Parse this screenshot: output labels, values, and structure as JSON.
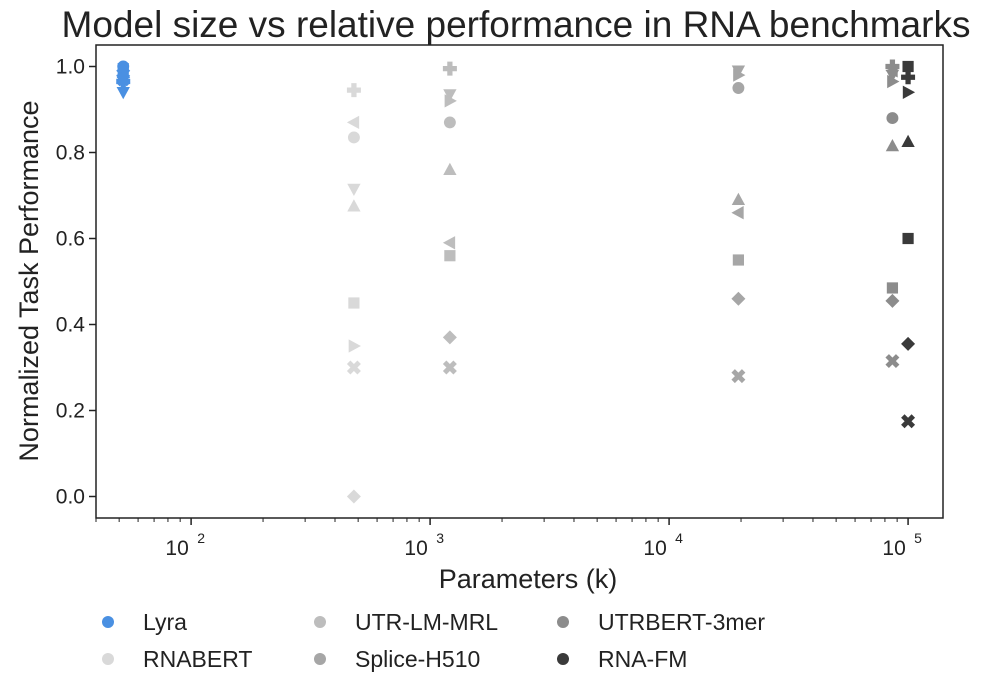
{
  "chart_data": {
    "type": "scatter",
    "title": "Model size vs relative performance in RNA benchmarks",
    "xlabel": "Parameters (k)",
    "ylabel": "Normalized Task Performance",
    "xscale": "log",
    "xlim": [
      40,
      140000
    ],
    "ylim": [
      -0.05,
      1.05
    ],
    "grid": false,
    "legend_position": "bottom",
    "y_ticks": [
      {
        "value": 0.0,
        "label": "0.0"
      },
      {
        "value": 0.2,
        "label": "0.2"
      },
      {
        "value": 0.4,
        "label": "0.4"
      },
      {
        "value": 0.6,
        "label": "0.6"
      },
      {
        "value": 0.8,
        "label": "0.8"
      },
      {
        "value": 1.0,
        "label": "1.0"
      }
    ],
    "x_ticks": [
      {
        "value": 100,
        "base": "10",
        "exp": "2"
      },
      {
        "value": 1000,
        "base": "10",
        "exp": "3"
      },
      {
        "value": 10000,
        "base": "10",
        "exp": "4"
      },
      {
        "value": 100000,
        "base": "10",
        "exp": "5"
      }
    ],
    "series": [
      {
        "name": "Lyra",
        "color": "#4A90E2",
        "points": [
          {
            "x": 52,
            "y": 1.0,
            "marker": "circle"
          },
          {
            "x": 52,
            "y": 0.995,
            "marker": "square"
          },
          {
            "x": 52,
            "y": 0.99,
            "marker": "diamond"
          },
          {
            "x": 52,
            "y": 0.985,
            "marker": "triangle-up"
          },
          {
            "x": 52,
            "y": 0.98,
            "marker": "triangle-left"
          },
          {
            "x": 52,
            "y": 0.975,
            "marker": "triangle-right"
          },
          {
            "x": 52,
            "y": 0.97,
            "marker": "x"
          },
          {
            "x": 52,
            "y": 0.965,
            "marker": "plus"
          },
          {
            "x": 52,
            "y": 0.94,
            "marker": "triangle-down"
          }
        ]
      },
      {
        "name": "RNABERT",
        "color": "#D9D9D9",
        "points": [
          {
            "x": 480,
            "y": 0.945,
            "marker": "plus"
          },
          {
            "x": 480,
            "y": 0.87,
            "marker": "triangle-left"
          },
          {
            "x": 480,
            "y": 0.835,
            "marker": "circle"
          },
          {
            "x": 480,
            "y": 0.715,
            "marker": "triangle-down"
          },
          {
            "x": 480,
            "y": 0.675,
            "marker": "triangle-up"
          },
          {
            "x": 480,
            "y": 0.45,
            "marker": "square"
          },
          {
            "x": 480,
            "y": 0.35,
            "marker": "triangle-right"
          },
          {
            "x": 480,
            "y": 0.3,
            "marker": "x"
          },
          {
            "x": 480,
            "y": 0.0,
            "marker": "diamond"
          }
        ]
      },
      {
        "name": "UTR-LM-MRL",
        "color": "#BDBDBD",
        "points": [
          {
            "x": 1210,
            "y": 0.995,
            "marker": "plus"
          },
          {
            "x": 1210,
            "y": 0.935,
            "marker": "triangle-down"
          },
          {
            "x": 1210,
            "y": 0.92,
            "marker": "triangle-right"
          },
          {
            "x": 1210,
            "y": 0.87,
            "marker": "circle"
          },
          {
            "x": 1210,
            "y": 0.76,
            "marker": "triangle-up"
          },
          {
            "x": 1210,
            "y": 0.59,
            "marker": "triangle-left"
          },
          {
            "x": 1210,
            "y": 0.56,
            "marker": "square"
          },
          {
            "x": 1210,
            "y": 0.37,
            "marker": "diamond"
          },
          {
            "x": 1210,
            "y": 0.3,
            "marker": "x"
          }
        ]
      },
      {
        "name": "Splice-H510",
        "color": "#A6A6A6",
        "points": [
          {
            "x": 19500,
            "y": 0.99,
            "marker": "triangle-down"
          },
          {
            "x": 19500,
            "y": 0.98,
            "marker": "triangle-right"
          },
          {
            "x": 19500,
            "y": 0.95,
            "marker": "circle"
          },
          {
            "x": 19500,
            "y": 0.69,
            "marker": "triangle-up"
          },
          {
            "x": 19500,
            "y": 0.66,
            "marker": "triangle-left"
          },
          {
            "x": 19500,
            "y": 0.55,
            "marker": "square"
          },
          {
            "x": 19500,
            "y": 0.46,
            "marker": "diamond"
          },
          {
            "x": 19500,
            "y": 0.28,
            "marker": "x"
          }
        ]
      },
      {
        "name": "UTRBERT-3mer",
        "color": "#8C8C8C",
        "points": [
          {
            "x": 86000,
            "y": 1.0,
            "marker": "plus"
          },
          {
            "x": 86000,
            "y": 0.99,
            "marker": "triangle-left"
          },
          {
            "x": 86000,
            "y": 0.98,
            "marker": "triangle-down"
          },
          {
            "x": 86000,
            "y": 0.965,
            "marker": "triangle-right"
          },
          {
            "x": 86000,
            "y": 0.88,
            "marker": "circle"
          },
          {
            "x": 86000,
            "y": 0.815,
            "marker": "triangle-up"
          },
          {
            "x": 86000,
            "y": 0.485,
            "marker": "square"
          },
          {
            "x": 86000,
            "y": 0.455,
            "marker": "diamond"
          },
          {
            "x": 86000,
            "y": 0.315,
            "marker": "x"
          }
        ]
      },
      {
        "name": "RNA-FM",
        "color": "#3A3A3A",
        "points": [
          {
            "x": 100000,
            "y": 1.0,
            "marker": "square"
          },
          {
            "x": 100000,
            "y": 0.975,
            "marker": "plus"
          },
          {
            "x": 100000,
            "y": 0.94,
            "marker": "triangle-right"
          },
          {
            "x": 100000,
            "y": 0.825,
            "marker": "triangle-up"
          },
          {
            "x": 100000,
            "y": 0.6,
            "marker": "square"
          },
          {
            "x": 100000,
            "y": 0.355,
            "marker": "diamond"
          },
          {
            "x": 100000,
            "y": 0.175,
            "marker": "x"
          }
        ]
      }
    ]
  }
}
